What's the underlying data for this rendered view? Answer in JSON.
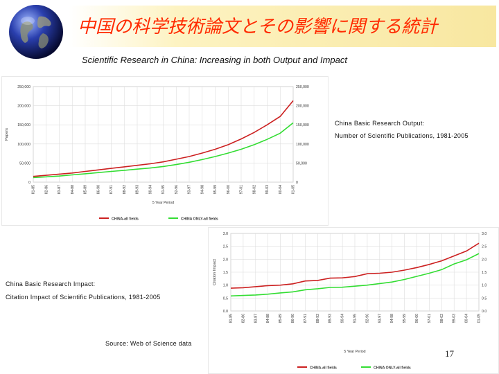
{
  "slide": {
    "title": "中国の科学技術論文とその影響に関する統計",
    "subtitle": "Scientific Research in China: Increasing in both Output and Impact",
    "page_number": "17",
    "source_note": "Source: Web of Science data"
  },
  "captions": {
    "output_line1": "China Basic Research Output:",
    "output_line2": "Number of Scientific Publications, 1981-2005",
    "impact_line1": "China Basic Research Impact:",
    "impact_line2": "Citation Impact of Scientific Publications, 1981-2005"
  },
  "colors": {
    "china_all": "#cc2020",
    "china_only": "#33dd33",
    "title": "#ff2a00",
    "plot_bg": "#ffffff",
    "grid": "#dddddd"
  },
  "chart_data": [
    {
      "type": "line",
      "xlabel": "5 Year Period",
      "ylabel": "Papers",
      "ylim": [
        0,
        250000
      ],
      "y_ticks": [
        "0",
        "50,000",
        "100,000",
        "150,000",
        "200,000",
        "250,000"
      ],
      "y_tick_values": [
        0,
        50000,
        100000,
        150000,
        200000,
        250000
      ],
      "categories": [
        "81-85",
        "82-86",
        "83-87",
        "84-88",
        "85-89",
        "86-90",
        "87-91",
        "88-92",
        "89-93",
        "90-94",
        "91-95",
        "92-96",
        "93-97",
        "94-98",
        "95-99",
        "96-00",
        "97-01",
        "98-02",
        "99-03",
        "00-04",
        "01-05"
      ],
      "series": [
        {
          "name": "CHINA-all fields",
          "color": "#cc2020",
          "values": [
            15000,
            18000,
            21000,
            24000,
            28000,
            32000,
            36000,
            40000,
            44000,
            48000,
            53000,
            60000,
            67000,
            76000,
            86000,
            98000,
            113000,
            130000,
            150000,
            172000,
            213000
          ]
        },
        {
          "name": "CHINA ONLY-all fields",
          "color": "#33dd33",
          "values": [
            12000,
            14000,
            16000,
            19000,
            22000,
            25000,
            28000,
            31000,
            34000,
            37000,
            41000,
            46000,
            52000,
            59000,
            67000,
            76000,
            86000,
            98000,
            112000,
            128000,
            155000
          ]
        }
      ],
      "legend": "bottom",
      "grid": true
    },
    {
      "type": "line",
      "xlabel": "5 Year Period",
      "ylabel": "Citation Impact",
      "ylim": [
        0,
        3.0
      ],
      "y_ticks": [
        "0.0",
        "0.5",
        "1.0",
        "1.5",
        "2.0",
        "2.5",
        "3.0"
      ],
      "y_tick_values": [
        0,
        0.5,
        1.0,
        1.5,
        2.0,
        2.5,
        3.0
      ],
      "categories": [
        "81-85",
        "82-86",
        "83-87",
        "84-88",
        "85-89",
        "86-90",
        "87-91",
        "88-92",
        "89-93",
        "90-94",
        "91-95",
        "92-96",
        "93-97",
        "94-98",
        "95-99",
        "96-00",
        "97-01",
        "98-02",
        "99-03",
        "00-04",
        "01-05"
      ],
      "series": [
        {
          "name": "CHINA-all fields",
          "color": "#cc2020",
          "values": [
            0.88,
            0.9,
            0.94,
            0.98,
            1.0,
            1.05,
            1.16,
            1.18,
            1.27,
            1.28,
            1.33,
            1.44,
            1.46,
            1.5,
            1.58,
            1.68,
            1.8,
            1.94,
            2.13,
            2.32,
            2.62
          ]
        },
        {
          "name": "CHINA ONLY-all fields",
          "color": "#33dd33",
          "values": [
            0.58,
            0.6,
            0.62,
            0.65,
            0.7,
            0.74,
            0.82,
            0.86,
            0.91,
            0.92,
            0.96,
            1.0,
            1.06,
            1.12,
            1.22,
            1.34,
            1.46,
            1.6,
            1.82,
            1.98,
            2.22
          ]
        }
      ],
      "legend": "bottom",
      "grid": true
    }
  ]
}
